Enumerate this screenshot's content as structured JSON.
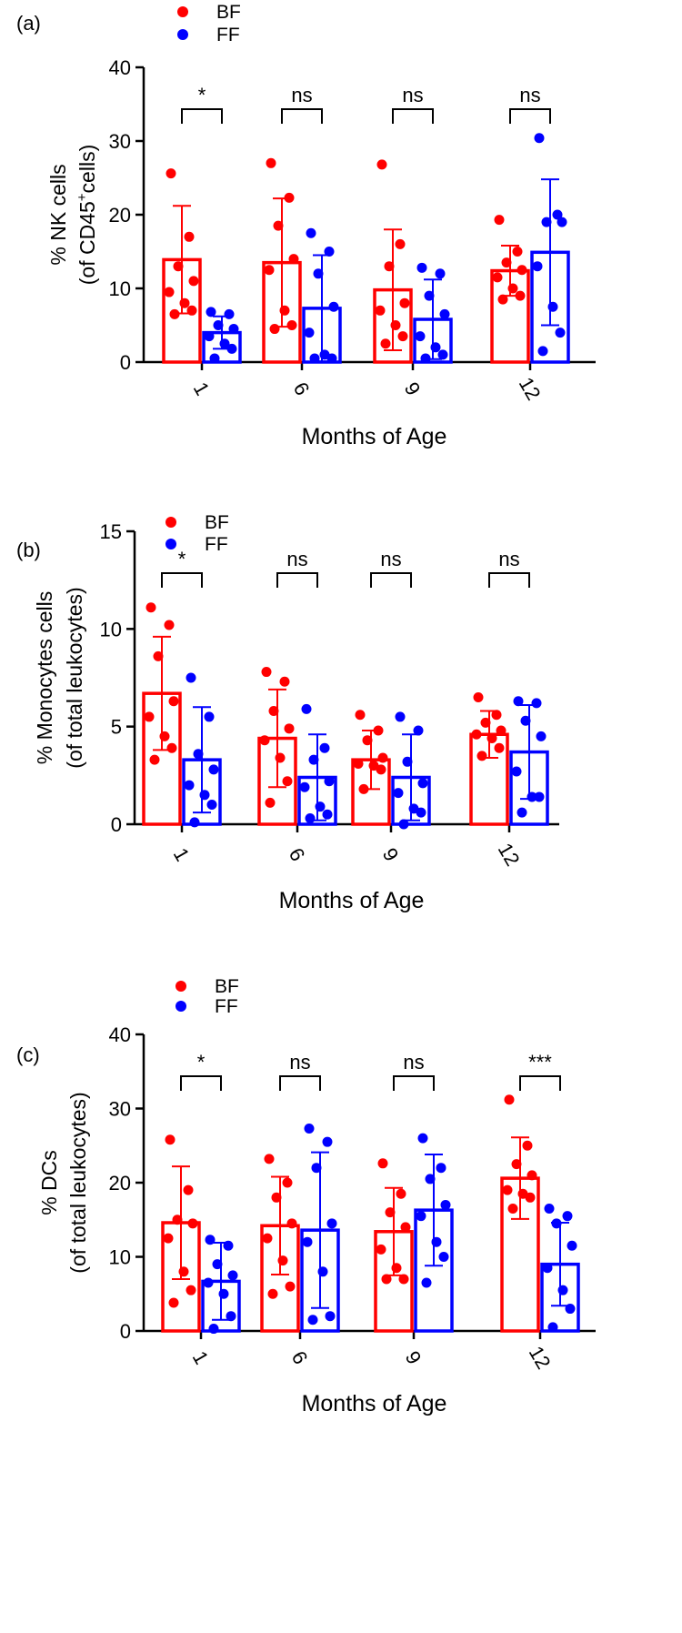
{
  "colors": {
    "BF": "#ff0000",
    "FF": "#0000ff",
    "axis": "#000000"
  },
  "chart_data": [
    {
      "type": "bar",
      "panel_label": "(a)",
      "xlabel": "Months of Age",
      "ylabel_lines": [
        "% NK cells",
        "(of CD45+cells)"
      ],
      "ylabel_line2": {
        "pre": "(of CD45",
        "sup": "+",
        "post": "cells)"
      },
      "ylim": [
        0,
        40
      ],
      "yticks": [
        0,
        10,
        20,
        30,
        40
      ],
      "categories": [
        "1",
        "6",
        "9",
        "12"
      ],
      "legend": [
        "BF",
        "FF"
      ],
      "significance": [
        "*",
        "ns",
        "ns",
        "ns"
      ],
      "series": [
        {
          "name": "BF",
          "values": [
            13.9,
            13.5,
            9.8,
            12.4
          ],
          "sd": [
            7.3,
            8.7,
            8.2,
            3.4
          ],
          "points": [
            [
              25.6,
              17.0,
              13.0,
              11.0,
              9.5,
              8.0,
              7.0,
              6.5
            ],
            [
              27.0,
              22.3,
              18.5,
              14.0,
              12.5,
              7.0,
              5.0,
              4.5
            ],
            [
              26.8,
              16.0,
              13.0,
              8.0,
              7.0,
              5.0,
              3.5,
              2.5
            ],
            [
              19.3,
              15.0,
              13.5,
              12.5,
              11.5,
              10.0,
              9.0,
              8.5
            ]
          ]
        },
        {
          "name": "FF",
          "values": [
            4.0,
            7.3,
            5.8,
            14.9
          ],
          "sd": [
            2.2,
            7.2,
            5.4,
            9.9
          ],
          "points": [
            [
              6.8,
              6.5,
              5.0,
              4.5,
              3.5,
              2.5,
              1.8,
              0.5
            ],
            [
              17.5,
              15.0,
              12.0,
              7.5,
              4.0,
              1.0,
              0.5,
              0.5
            ],
            [
              12.8,
              12.0,
              9.0,
              6.5,
              3.5,
              2.0,
              1.0,
              0.5
            ],
            [
              30.4,
              20.0,
              19.0,
              19.0,
              13.0,
              7.5,
              4.0,
              1.5
            ]
          ]
        }
      ]
    },
    {
      "type": "bar",
      "panel_label": "(b)",
      "xlabel": "Months of Age",
      "ylabel_lines": [
        "% Monocytes cells",
        "(of total leukocytes)"
      ],
      "ylim": [
        0,
        15
      ],
      "yticks": [
        0,
        5,
        10,
        15
      ],
      "categories": [
        "1",
        "6",
        "9",
        "12"
      ],
      "legend": [
        "BF",
        "FF"
      ],
      "significance": [
        "*",
        "ns",
        "ns",
        "ns"
      ],
      "series": [
        {
          "name": "BF",
          "values": [
            6.7,
            4.4,
            3.3,
            4.6
          ],
          "sd": [
            2.9,
            2.5,
            1.5,
            1.2
          ],
          "points": [
            [
              11.1,
              10.2,
              8.6,
              6.3,
              5.5,
              4.5,
              3.9,
              3.3
            ],
            [
              7.8,
              7.3,
              5.8,
              4.9,
              4.3,
              3.4,
              2.2,
              1.1
            ],
            [
              5.6,
              4.8,
              4.3,
              3.4,
              3.1,
              3.0,
              2.8,
              1.8
            ],
            [
              6.5,
              5.6,
              5.2,
              4.8,
              4.6,
              4.4,
              3.9,
              3.5
            ]
          ]
        },
        {
          "name": "FF",
          "values": [
            3.3,
            2.4,
            2.4,
            3.7
          ],
          "sd": [
            2.7,
            2.2,
            2.2,
            2.4
          ],
          "points": [
            [
              7.5,
              5.5,
              3.6,
              2.8,
              2.0,
              1.5,
              1.0,
              0.1
            ],
            [
              5.9,
              3.9,
              3.3,
              2.2,
              1.9,
              0.9,
              0.5,
              0.3
            ],
            [
              5.5,
              4.8,
              3.2,
              2.1,
              1.6,
              0.8,
              0.6,
              0.0
            ],
            [
              6.3,
              6.2,
              5.3,
              4.5,
              2.7,
              1.4,
              1.4,
              0.6
            ]
          ]
        }
      ]
    },
    {
      "type": "bar",
      "panel_label": "(c)",
      "xlabel": "Months of Age",
      "ylabel_lines": [
        "% DCs",
        "(of total leukocytes)"
      ],
      "ylim": [
        0,
        40
      ],
      "yticks": [
        0,
        10,
        20,
        30,
        40
      ],
      "categories": [
        "1",
        "6",
        "9",
        "12"
      ],
      "legend": [
        "BF",
        "FF"
      ],
      "significance": [
        "*",
        "ns",
        "ns",
        "***"
      ],
      "series": [
        {
          "name": "BF",
          "values": [
            14.6,
            14.2,
            13.4,
            20.6
          ],
          "sd": [
            7.6,
            6.6,
            5.9,
            5.5
          ],
          "points": [
            [
              25.8,
              19.0,
              15.0,
              14.5,
              12.5,
              8.0,
              5.5,
              3.8
            ],
            [
              23.2,
              20.0,
              18.0,
              14.5,
              12.5,
              9.5,
              6.0,
              5.0
            ],
            [
              22.6,
              18.5,
              16.0,
              14.0,
              11.0,
              8.5,
              7.0,
              7.0
            ],
            [
              31.2,
              25.0,
              22.5,
              21.0,
              19.0,
              18.5,
              18.0,
              16.5
            ]
          ]
        },
        {
          "name": "FF",
          "values": [
            6.7,
            13.6,
            16.3,
            9.0
          ],
          "sd": [
            5.2,
            10.5,
            7.5,
            5.6
          ],
          "points": [
            [
              12.3,
              11.5,
              9.0,
              7.5,
              6.5,
              5.0,
              2.0,
              0.3
            ],
            [
              27.3,
              25.5,
              22.0,
              14.5,
              12.0,
              8.0,
              2.0,
              1.5
            ],
            [
              26.0,
              22.0,
              20.5,
              17.0,
              15.5,
              12.0,
              10.0,
              6.5
            ],
            [
              16.5,
              15.5,
              14.5,
              11.5,
              8.5,
              5.5,
              3.0,
              0.5
            ]
          ]
        }
      ]
    }
  ]
}
